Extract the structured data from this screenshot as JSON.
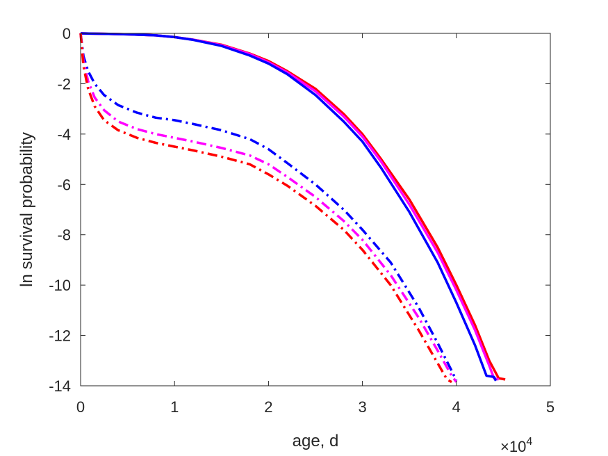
{
  "chart_data": {
    "type": "line",
    "xlabel": "age, d",
    "ylabel": "ln survival probability",
    "xlim": [
      0,
      50000
    ],
    "ylim": [
      -14,
      0
    ],
    "x_ticks": [
      0,
      10000,
      20000,
      30000,
      40000,
      50000
    ],
    "x_tick_labels": [
      "0",
      "1",
      "2",
      "3",
      "4",
      "5"
    ],
    "x_exponent_label": {
      "base": "×10",
      "exponent": "4"
    },
    "y_ticks": [
      0,
      -2,
      -4,
      -6,
      -8,
      -10,
      -12,
      -14
    ],
    "y_tick_labels": [
      "0",
      "-2",
      "-4",
      "-6",
      "-8",
      "-10",
      "-12",
      "-14"
    ],
    "grid": false,
    "box": true,
    "series": [
      {
        "color": "#ff0000",
        "style": "solid",
        "x": [
          0,
          3000,
          5000,
          8000,
          10000,
          12000,
          15000,
          18000,
          20000,
          22000,
          25000,
          28000,
          30000,
          32000,
          35000,
          38000,
          40000,
          42000,
          43500,
          44500,
          45200
        ],
        "y": [
          0,
          -0.02,
          -0.04,
          -0.08,
          -0.15,
          -0.25,
          -0.45,
          -0.8,
          -1.1,
          -1.5,
          -2.2,
          -3.2,
          -4.0,
          -5.0,
          -6.6,
          -8.5,
          -10.0,
          -11.6,
          -13.0,
          -13.7,
          -13.75
        ]
      },
      {
        "color": "#ff00ff",
        "style": "solid",
        "x": [
          0,
          3000,
          5000,
          8000,
          10000,
          12000,
          15000,
          18000,
          20000,
          22000,
          25000,
          28000,
          30000,
          32000,
          35000,
          38000,
          40000,
          42000,
          43500,
          44000,
          44500
        ],
        "y": [
          0,
          -0.02,
          -0.04,
          -0.08,
          -0.15,
          -0.25,
          -0.47,
          -0.82,
          -1.15,
          -1.55,
          -2.3,
          -3.3,
          -4.1,
          -5.1,
          -6.8,
          -8.7,
          -10.2,
          -11.8,
          -13.2,
          -13.7,
          -13.75
        ]
      },
      {
        "color": "#0000ff",
        "style": "solid",
        "x": [
          0,
          3000,
          5000,
          8000,
          10000,
          12000,
          15000,
          18000,
          20000,
          22000,
          25000,
          28000,
          30000,
          32000,
          35000,
          38000,
          40000,
          42000,
          43200,
          44000,
          44200
        ],
        "y": [
          0,
          -0.02,
          -0.04,
          -0.08,
          -0.15,
          -0.26,
          -0.5,
          -0.88,
          -1.2,
          -1.62,
          -2.45,
          -3.5,
          -4.3,
          -5.35,
          -7.1,
          -9.1,
          -10.7,
          -12.4,
          -13.6,
          -13.65,
          -13.8
        ]
      },
      {
        "color": "#0000ff",
        "style": "dashdot",
        "x": [
          0,
          300,
          800,
          1500,
          2500,
          4000,
          6000,
          8000,
          10000,
          12000,
          15000,
          18000,
          20000,
          22000,
          25000,
          28000,
          30000,
          33000,
          36000,
          38000,
          39500,
          40000
        ],
        "y": [
          0,
          -0.9,
          -1.5,
          -2.0,
          -2.45,
          -2.85,
          -3.15,
          -3.35,
          -3.45,
          -3.6,
          -3.85,
          -4.2,
          -4.6,
          -5.15,
          -6.0,
          -7.0,
          -7.8,
          -9.1,
          -10.9,
          -12.3,
          -13.4,
          -13.8
        ]
      },
      {
        "color": "#ff00ff",
        "style": "dashdot",
        "x": [
          0,
          300,
          800,
          1500,
          2500,
          4000,
          6000,
          8000,
          10000,
          12000,
          15000,
          18000,
          20000,
          22000,
          25000,
          28000,
          30000,
          33000,
          36000,
          38000,
          39500,
          40000
        ],
        "y": [
          0,
          -1.1,
          -1.9,
          -2.55,
          -3.05,
          -3.5,
          -3.8,
          -4.0,
          -4.15,
          -4.3,
          -4.55,
          -4.85,
          -5.2,
          -5.7,
          -6.5,
          -7.45,
          -8.2,
          -9.6,
          -11.3,
          -12.6,
          -13.6,
          -13.85
        ]
      },
      {
        "color": "#ff0000",
        "style": "dashdot",
        "x": [
          0,
          300,
          800,
          1500,
          2500,
          4000,
          6000,
          8000,
          10000,
          12000,
          15000,
          18000,
          20000,
          22000,
          25000,
          28000,
          30000,
          33000,
          36000,
          38000,
          39000,
          39500
        ],
        "y": [
          0,
          -1.3,
          -2.2,
          -2.9,
          -3.45,
          -3.85,
          -4.15,
          -4.35,
          -4.5,
          -4.65,
          -4.9,
          -5.2,
          -5.6,
          -6.05,
          -6.85,
          -7.8,
          -8.6,
          -10.0,
          -11.8,
          -13.1,
          -13.75,
          -13.85
        ]
      }
    ]
  }
}
